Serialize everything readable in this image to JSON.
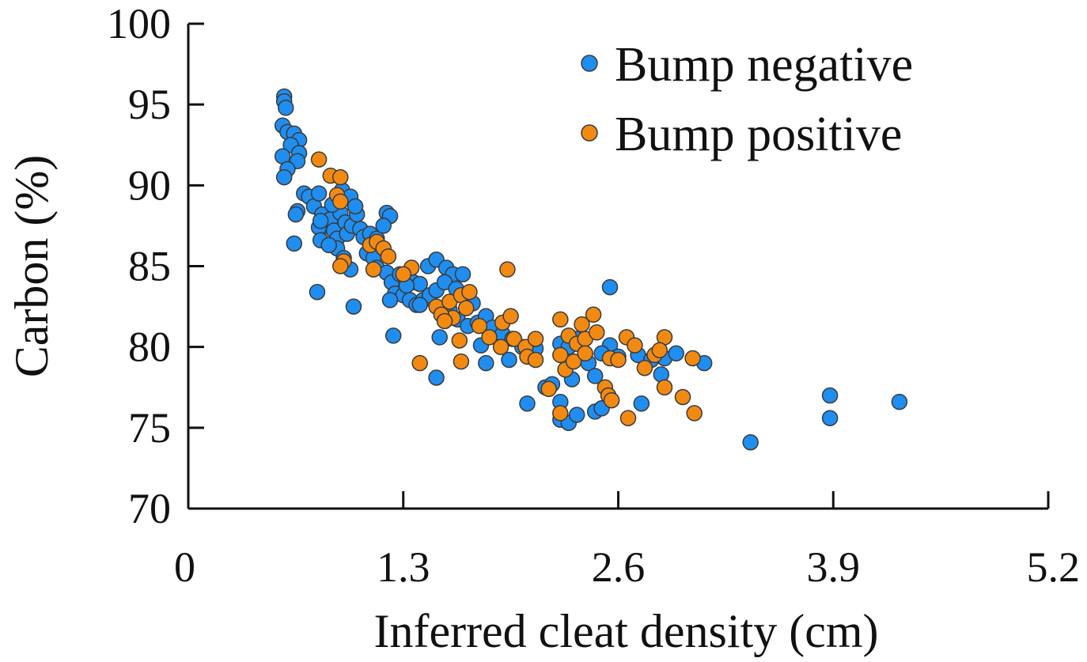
{
  "chart_data": {
    "type": "scatter",
    "title": "",
    "xlabel": "Inferred cleat density (cm)",
    "ylabel": "Carbon (%)",
    "xlim": [
      0,
      5.2
    ],
    "ylim": [
      70,
      100
    ],
    "xticks": [
      0,
      1.3,
      2.6,
      3.9,
      5.2
    ],
    "xtick_labels": [
      "0",
      "1.3",
      "2.6",
      "3.9",
      "5.2"
    ],
    "yticks": [
      70,
      75,
      80,
      85,
      90,
      95,
      100
    ],
    "ytick_labels": [
      "70",
      "75",
      "80",
      "85",
      "90",
      "95",
      "100"
    ],
    "legend_position": "top-right",
    "series": [
      {
        "name": "Bump negative",
        "color": "#1f8ef0",
        "points": [
          [
            0.58,
            95.5
          ],
          [
            0.58,
            95.2
          ],
          [
            0.59,
            94.8
          ],
          [
            0.57,
            93.7
          ],
          [
            0.6,
            93.3
          ],
          [
            0.64,
            93.2
          ],
          [
            0.67,
            92.8
          ],
          [
            0.62,
            92.5
          ],
          [
            0.67,
            92.0
          ],
          [
            0.57,
            91.8
          ],
          [
            0.66,
            91.5
          ],
          [
            0.6,
            91.0
          ],
          [
            0.58,
            90.5
          ],
          [
            0.7,
            89.5
          ],
          [
            0.66,
            88.4
          ],
          [
            0.65,
            88.2
          ],
          [
            0.64,
            86.4
          ],
          [
            0.73,
            89.3
          ],
          [
            0.76,
            88.7
          ],
          [
            0.79,
            89.5
          ],
          [
            0.81,
            88.2
          ],
          [
            0.83,
            87.5
          ],
          [
            0.79,
            87.4
          ],
          [
            0.8,
            86.6
          ],
          [
            0.86,
            87.9
          ],
          [
            0.88,
            87.2
          ],
          [
            0.9,
            86.7
          ],
          [
            0.92,
            88.3
          ],
          [
            0.95,
            87.7
          ],
          [
            0.96,
            87.0
          ],
          [
            0.99,
            87.5
          ],
          [
            1.02,
            88.2
          ],
          [
            1.04,
            87.3
          ],
          [
            1.06,
            86.8
          ],
          [
            0.9,
            86.1
          ],
          [
            0.94,
            85.5
          ],
          [
            0.98,
            84.8
          ],
          [
            0.85,
            86.3
          ],
          [
            0.8,
            87.8
          ],
          [
            0.87,
            88.8
          ],
          [
            0.93,
            89.7
          ],
          [
            0.98,
            89.3
          ],
          [
            1.01,
            88.7
          ],
          [
            1.1,
            87.0
          ],
          [
            1.14,
            86.7
          ],
          [
            1.17,
            86.0
          ],
          [
            1.2,
            88.3
          ],
          [
            1.22,
            88.1
          ],
          [
            1.18,
            87.5
          ],
          [
            1.08,
            85.8
          ],
          [
            1.12,
            85.5
          ],
          [
            1.14,
            84.9
          ],
          [
            1.2,
            84.6
          ],
          [
            1.23,
            84.0
          ],
          [
            1.28,
            84.5
          ],
          [
            1.32,
            84.3
          ],
          [
            1.36,
            84.0
          ],
          [
            1.4,
            83.9
          ],
          [
            1.25,
            83.3
          ],
          [
            1.3,
            83.2
          ],
          [
            1.34,
            82.9
          ],
          [
            1.38,
            82.6
          ],
          [
            1.42,
            82.9
          ],
          [
            1.46,
            83.2
          ],
          [
            1.5,
            83.5
          ],
          [
            1.22,
            82.9
          ],
          [
            1.45,
            85.0
          ],
          [
            1.5,
            85.4
          ],
          [
            1.56,
            84.9
          ],
          [
            1.6,
            84.5
          ],
          [
            1.66,
            84.5
          ],
          [
            1.55,
            84.0
          ],
          [
            1.62,
            83.6
          ],
          [
            1.68,
            83.2
          ],
          [
            1.72,
            82.7
          ],
          [
            1.58,
            82.3
          ],
          [
            1.63,
            81.7
          ],
          [
            1.69,
            81.3
          ],
          [
            1.75,
            81.5
          ],
          [
            1.8,
            81.9
          ],
          [
            1.84,
            81.2
          ],
          [
            1.9,
            80.8
          ],
          [
            1.96,
            80.5
          ],
          [
            2.02,
            80.0
          ],
          [
            2.06,
            79.6
          ],
          [
            2.1,
            79.9
          ],
          [
            1.77,
            80.1
          ],
          [
            1.8,
            79.0
          ],
          [
            1.94,
            79.2
          ],
          [
            1.52,
            80.6
          ],
          [
            1.32,
            83.8
          ],
          [
            1.4,
            82.6
          ],
          [
            0.78,
            83.4
          ],
          [
            1.0,
            82.5
          ],
          [
            1.24,
            80.7
          ],
          [
            1.5,
            78.1
          ],
          [
            2.05,
            76.5
          ],
          [
            2.16,
            77.5
          ],
          [
            2.25,
            76.6
          ],
          [
            2.25,
            75.5
          ],
          [
            2.3,
            75.3
          ],
          [
            2.35,
            75.8
          ],
          [
            2.46,
            76.0
          ],
          [
            2.5,
            76.2
          ],
          [
            2.42,
            79.0
          ],
          [
            2.46,
            78.2
          ],
          [
            2.32,
            78.0
          ],
          [
            2.25,
            80.2
          ],
          [
            2.3,
            80.0
          ],
          [
            2.35,
            80.5
          ],
          [
            2.55,
            80.1
          ],
          [
            2.6,
            79.4
          ],
          [
            2.55,
            83.7
          ],
          [
            2.72,
            79.5
          ],
          [
            2.8,
            79.2
          ],
          [
            2.88,
            79.3
          ],
          [
            2.95,
            79.6
          ],
          [
            3.12,
            79.0
          ],
          [
            2.74,
            76.5
          ],
          [
            2.86,
            78.3
          ],
          [
            2.5,
            79.6
          ],
          [
            2.2,
            77.7
          ],
          [
            3.4,
            74.1
          ],
          [
            3.88,
            77.0
          ],
          [
            3.88,
            75.6
          ],
          [
            4.3,
            76.6
          ]
        ]
      },
      {
        "name": "Bump positive",
        "color": "#f28a12",
        "points": [
          [
            0.79,
            91.6
          ],
          [
            0.86,
            90.6
          ],
          [
            0.92,
            90.5
          ],
          [
            0.9,
            89.4
          ],
          [
            0.92,
            89.0
          ],
          [
            0.94,
            85.3
          ],
          [
            0.92,
            85.0
          ],
          [
            1.1,
            86.3
          ],
          [
            1.14,
            86.5
          ],
          [
            1.18,
            86.1
          ],
          [
            1.21,
            85.6
          ],
          [
            1.12,
            84.8
          ],
          [
            1.35,
            84.9
          ],
          [
            1.3,
            84.5
          ],
          [
            1.5,
            82.5
          ],
          [
            1.58,
            82.8
          ],
          [
            1.65,
            83.2
          ],
          [
            1.7,
            83.4
          ],
          [
            1.68,
            82.4
          ],
          [
            1.6,
            81.8
          ],
          [
            1.53,
            82.0
          ],
          [
            1.55,
            81.6
          ],
          [
            1.76,
            81.3
          ],
          [
            1.82,
            80.6
          ],
          [
            1.89,
            80.0
          ],
          [
            1.97,
            80.5
          ],
          [
            2.04,
            80.0
          ],
          [
            2.1,
            80.5
          ],
          [
            1.9,
            81.5
          ],
          [
            1.95,
            81.9
          ],
          [
            2.05,
            79.4
          ],
          [
            2.1,
            79.2
          ],
          [
            1.64,
            80.4
          ],
          [
            1.4,
            79.0
          ],
          [
            1.65,
            79.1
          ],
          [
            1.93,
            84.8
          ],
          [
            2.25,
            81.7
          ],
          [
            2.3,
            80.7
          ],
          [
            2.35,
            80.2
          ],
          [
            2.4,
            80.5
          ],
          [
            2.47,
            80.9
          ],
          [
            2.25,
            79.5
          ],
          [
            2.28,
            78.6
          ],
          [
            2.33,
            79.1
          ],
          [
            2.4,
            79.6
          ],
          [
            2.45,
            82.0
          ],
          [
            2.38,
            81.4
          ],
          [
            2.55,
            79.3
          ],
          [
            2.6,
            79.2
          ],
          [
            2.65,
            80.6
          ],
          [
            2.7,
            80.1
          ],
          [
            2.76,
            78.7
          ],
          [
            2.82,
            79.5
          ],
          [
            2.88,
            80.6
          ],
          [
            2.85,
            79.8
          ],
          [
            3.05,
            79.3
          ],
          [
            2.52,
            77.5
          ],
          [
            2.54,
            77.0
          ],
          [
            2.56,
            76.7
          ],
          [
            2.25,
            75.9
          ],
          [
            2.66,
            75.6
          ],
          [
            2.88,
            77.5
          ],
          [
            2.99,
            76.9
          ],
          [
            3.06,
            75.9
          ],
          [
            2.18,
            77.4
          ]
        ]
      }
    ]
  }
}
